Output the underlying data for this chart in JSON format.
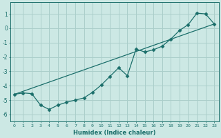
{
  "xlabel": "Humidex (Indice chaleur)",
  "ylabel": "",
  "background_color": "#cce8e4",
  "grid_color": "#aaceca",
  "line_color": "#1a6e6a",
  "xlim": [
    -0.5,
    23.5
  ],
  "ylim": [
    -6.5,
    1.8
  ],
  "ytick_values": [
    1,
    0,
    -1,
    -2,
    -3,
    -4,
    -5,
    -6
  ],
  "line1_x": [
    0,
    1,
    2,
    3,
    4,
    5,
    6,
    7,
    8,
    9,
    10,
    11,
    12,
    13,
    14,
    15,
    16,
    17,
    18,
    19,
    20,
    21,
    22,
    23
  ],
  "line1_y": [
    -4.6,
    -4.5,
    -4.55,
    -5.35,
    -5.65,
    -5.35,
    -5.15,
    -5.0,
    -4.85,
    -4.45,
    -3.95,
    -3.35,
    -2.75,
    -3.3,
    -1.45,
    -1.65,
    -1.5,
    -1.25,
    -0.75,
    -0.15,
    0.25,
    1.05,
    1.0,
    0.3
  ],
  "line2_x": [
    0,
    23
  ],
  "line2_y": [
    -4.6,
    0.3
  ],
  "marker": "D",
  "markersize": 2.5
}
